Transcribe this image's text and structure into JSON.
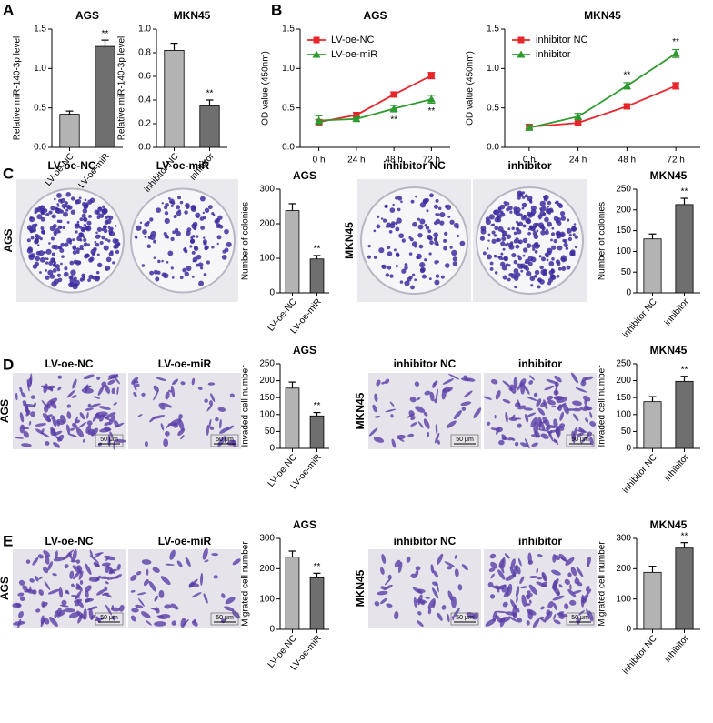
{
  "panels": [
    "A",
    "B",
    "C",
    "D",
    "E"
  ],
  "image_groups": [
    {
      "row_label": "AGS",
      "labels": [
        "LV-oe-NC",
        "LV-oe-miR"
      ]
    },
    {
      "row_label": "MKN45",
      "labels": [
        "inhibitor NC",
        "inhibitor"
      ]
    },
    {
      "row_label": "AGS",
      "labels": [
        "LV-oe-NC",
        "LV-oe-miR"
      ],
      "scale_bar": "50 μm"
    },
    {
      "row_label": "MKN45",
      "labels": [
        "inhibitor NC",
        "inhibitor"
      ],
      "scale_bar": "50 μm"
    },
    {
      "row_label": "AGS",
      "labels": [
        "LV-oe-NC",
        "LV-oe-miR"
      ],
      "scale_bar": "50 μm"
    },
    {
      "row_label": "MKN45",
      "labels": [
        "inhibitor NC",
        "inhibitor"
      ],
      "scale_bar": "50 μm"
    }
  ],
  "chart_data": [
    {
      "type": "bar",
      "title": "AGS",
      "y_label": "Relative miR-140-3p level",
      "categories": [
        "LV-oe-NC",
        "LV-oe-miR"
      ],
      "values": [
        0.42,
        1.28
      ],
      "errors": [
        0.04,
        0.08
      ],
      "colors": [
        "#b3b3b3",
        "#6f6f6f"
      ],
      "significance": [
        null,
        "**"
      ],
      "ylim": [
        0,
        1.5
      ],
      "yticks": [
        {
          "value": 0,
          "label": "0.0"
        },
        {
          "value": 0.5,
          "label": "0.5"
        },
        {
          "value": 1,
          "label": "1.0"
        },
        {
          "value": 1.5,
          "label": "1.5"
        }
      ]
    },
    {
      "type": "bar",
      "title": "MKN45",
      "y_label": "Relative miR-140-3p level",
      "categories": [
        "inhibitor NC",
        "inhibitor"
      ],
      "values": [
        0.82,
        0.35
      ],
      "errors": [
        0.06,
        0.05
      ],
      "colors": [
        "#b3b3b3",
        "#6f6f6f"
      ],
      "significance": [
        null,
        "**"
      ],
      "ylim": [
        0,
        1
      ],
      "yticks": [
        {
          "value": 0,
          "label": "0.0"
        },
        {
          "value": 0.2,
          "label": "0.2"
        },
        {
          "value": 0.4,
          "label": "0.4"
        },
        {
          "value": 0.6,
          "label": "0.6"
        },
        {
          "value": 0.8,
          "label": "0.8"
        },
        {
          "value": 1,
          "label": "1.0"
        }
      ]
    },
    {
      "type": "line",
      "title": "AGS",
      "y_label": "OD value (450nm)",
      "categories": [
        "0 h",
        "24 h",
        "48 h",
        "72 h"
      ],
      "significance_side": "below",
      "series": [
        {
          "name": "LV-oe-NC",
          "color": "#e8252a",
          "marker": "square",
          "values": [
            0.32,
            0.41,
            0.67,
            0.91
          ],
          "errors": [
            0.03,
            0.03,
            0.03,
            0.04
          ],
          "significance": [
            null,
            null,
            null,
            null
          ]
        },
        {
          "name": "LV-oe-miR",
          "color": "#2f9a2f",
          "marker": "triangle",
          "values": [
            0.34,
            0.36,
            0.49,
            0.61
          ],
          "errors": [
            0.06,
            0.03,
            0.04,
            0.05
          ],
          "significance": [
            null,
            null,
            "**",
            "**"
          ]
        }
      ],
      "ylim": [
        0,
        1.5
      ],
      "yticks": [
        {
          "value": 0,
          "label": "0.0"
        },
        {
          "value": 0.5,
          "label": "0.5"
        },
        {
          "value": 1,
          "label": "1.0"
        },
        {
          "value": 1.5,
          "label": "1.5"
        }
      ]
    },
    {
      "type": "line",
      "title": "MKN45",
      "y_label": "OD value (450nm)",
      "categories": [
        "0 h",
        "24 h",
        "48 h",
        "72 h"
      ],
      "significance_side": "above",
      "series": [
        {
          "name": "inhibitor NC",
          "color": "#e8252a",
          "marker": "square",
          "values": [
            0.26,
            0.31,
            0.52,
            0.78
          ],
          "errors": [
            0.03,
            0.02,
            0.03,
            0.04
          ],
          "significance": [
            null,
            null,
            null,
            null
          ]
        },
        {
          "name": "inhibitor",
          "color": "#2f9a2f",
          "marker": "triangle",
          "values": [
            0.25,
            0.39,
            0.78,
            1.19
          ],
          "errors": [
            0.03,
            0.04,
            0.04,
            0.05
          ],
          "significance": [
            null,
            null,
            "**",
            "**"
          ]
        }
      ],
      "ylim": [
        0,
        1.5
      ],
      "yticks": [
        {
          "value": 0,
          "label": "0.0"
        },
        {
          "value": 0.5,
          "label": "0.5"
        },
        {
          "value": 1,
          "label": "1.0"
        },
        {
          "value": 1.5,
          "label": "1.5"
        }
      ]
    },
    {
      "type": "bar",
      "title": "AGS",
      "y_label": "Number of colonies",
      "categories": [
        "LV-oe-NC",
        "LV-oe-miR"
      ],
      "values": [
        238,
        98
      ],
      "errors": [
        20,
        10
      ],
      "colors": [
        "#b3b3b3",
        "#6f6f6f"
      ],
      "significance": [
        null,
        "**"
      ],
      "ylim": [
        0,
        300
      ],
      "yticks": [
        0,
        100,
        200,
        300
      ]
    },
    {
      "type": "bar",
      "title": "MKN45",
      "y_label": "Number of colonies",
      "categories": [
        "inhibitor NC",
        "inhibitor"
      ],
      "values": [
        130,
        213
      ],
      "errors": [
        12,
        15
      ],
      "colors": [
        "#b3b3b3",
        "#6f6f6f"
      ],
      "significance": [
        null,
        "**"
      ],
      "ylim": [
        0,
        250
      ],
      "yticks": [
        0,
        50,
        100,
        150,
        200,
        250
      ]
    },
    {
      "type": "bar",
      "title": "AGS",
      "y_label": "Invaded cell number",
      "categories": [
        "LV-oe-NC",
        "LV-oe-miR"
      ],
      "values": [
        178,
        96
      ],
      "errors": [
        18,
        10
      ],
      "colors": [
        "#b3b3b3",
        "#6f6f6f"
      ],
      "significance": [
        null,
        "**"
      ],
      "ylim": [
        0,
        250
      ],
      "yticks": [
        0,
        50,
        100,
        150,
        200,
        250
      ]
    },
    {
      "type": "bar",
      "title": "MKN45",
      "y_label": "Invaded cell number",
      "categories": [
        "inhibitor NC",
        "inhibitor"
      ],
      "values": [
        138,
        198
      ],
      "errors": [
        15,
        15
      ],
      "colors": [
        "#b3b3b3",
        "#6f6f6f"
      ],
      "significance": [
        null,
        "**"
      ],
      "ylim": [
        0,
        250
      ],
      "yticks": [
        0,
        50,
        100,
        150,
        200,
        250
      ]
    },
    {
      "type": "bar",
      "title": "AGS",
      "y_label": "Migrated cell number",
      "categories": [
        "LV-oe-NC",
        "LV-oe-miR"
      ],
      "values": [
        238,
        170
      ],
      "errors": [
        20,
        15
      ],
      "colors": [
        "#b3b3b3",
        "#6f6f6f"
      ],
      "significance": [
        null,
        "**"
      ],
      "ylim": [
        0,
        300
      ],
      "yticks": [
        0,
        100,
        200,
        300
      ]
    },
    {
      "type": "bar",
      "title": "MKN45",
      "y_label": "Migrated cell number",
      "categories": [
        "inhibitor NC",
        "inhibitor"
      ],
      "values": [
        188,
        268
      ],
      "errors": [
        20,
        18
      ],
      "colors": [
        "#b3b3b3",
        "#6f6f6f"
      ],
      "significance": [
        null,
        "**"
      ],
      "ylim": [
        0,
        300
      ],
      "yticks": [
        0,
        100,
        200,
        300
      ]
    }
  ]
}
